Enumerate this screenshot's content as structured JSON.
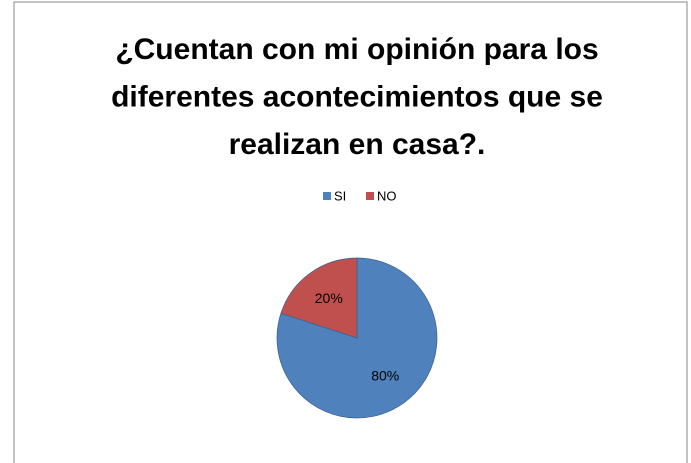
{
  "chart_data": {
    "type": "pie",
    "title": [
      "¿Cuentan con mi opinión para los",
      "diferentes acontecimientos que se",
      "realizan en casa?."
    ],
    "categories": [
      "SI",
      "NO"
    ],
    "values": [
      80,
      20
    ],
    "value_labels": [
      "80%",
      "20%"
    ],
    "colors": [
      "#4f81bd",
      "#c0504d"
    ],
    "legend": "top"
  }
}
